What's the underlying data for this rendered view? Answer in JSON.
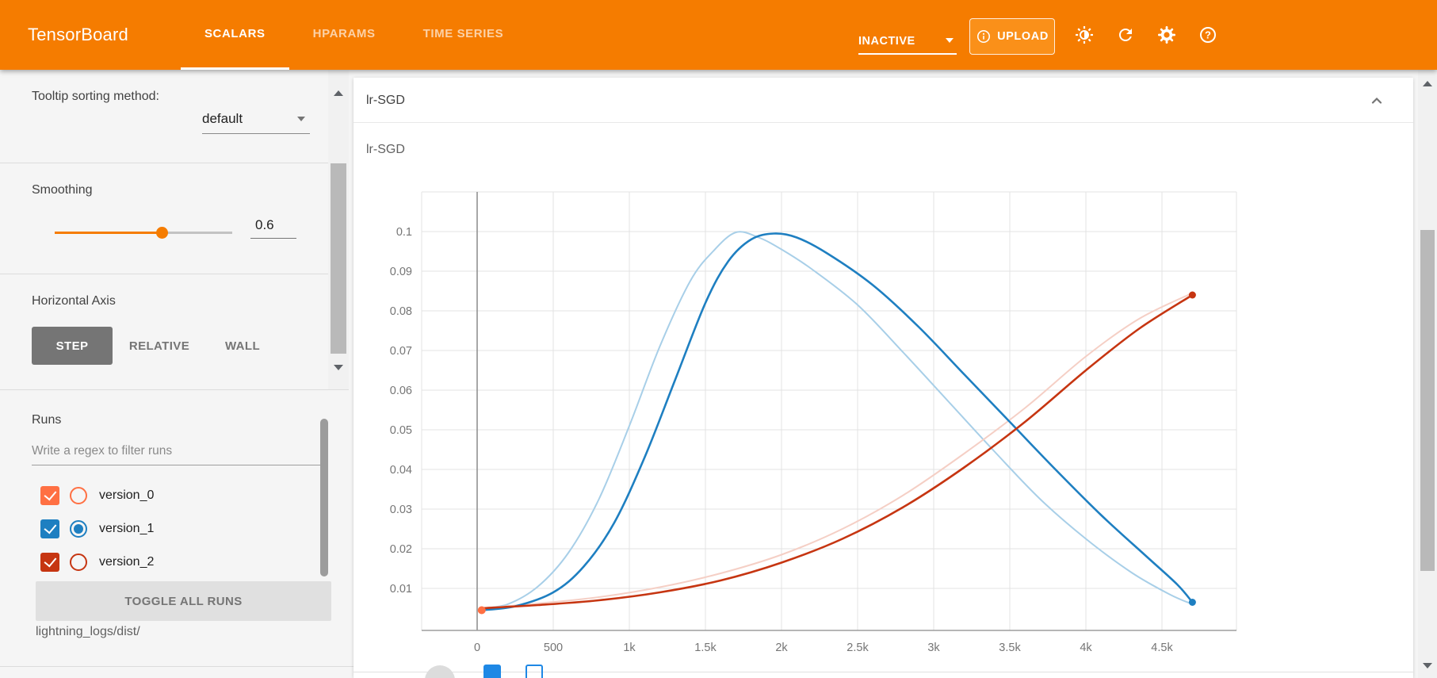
{
  "header": {
    "title": "TensorBoard",
    "tabs": [
      {
        "label": "SCALARS",
        "active": true
      },
      {
        "label": "HPARAMS",
        "active": false
      },
      {
        "label": "TIME SERIES",
        "active": false
      }
    ],
    "status": {
      "label": "INACTIVE"
    },
    "upload_label": "UPLOAD",
    "icons": [
      "info-icon",
      "brightness-icon",
      "refresh-icon",
      "settings-icon",
      "help-icon"
    ],
    "accent_color": "#f57c00"
  },
  "sidebar": {
    "tooltip_sorting": {
      "label": "Tooltip sorting method:",
      "value": "default"
    },
    "smoothing": {
      "label": "Smoothing",
      "value": "0.6"
    },
    "horizontal_axis": {
      "label": "Horizontal Axis",
      "options": [
        {
          "label": "STEP",
          "active": true
        },
        {
          "label": "RELATIVE",
          "active": false
        },
        {
          "label": "WALL",
          "active": false
        }
      ]
    },
    "runs": {
      "label": "Runs",
      "filter_placeholder": "Write a regex to filter runs",
      "items": [
        {
          "name": "version_0",
          "color": "#ff7043",
          "checked": true,
          "radio_selected": false
        },
        {
          "name": "version_1",
          "color": "#1e7fc1",
          "checked": true,
          "radio_selected": true
        },
        {
          "name": "version_2",
          "color": "#c63511",
          "checked": true,
          "radio_selected": false
        }
      ],
      "toggle_label": "TOGGLE ALL RUNS",
      "logdir": "lightning_logs/dist/"
    }
  },
  "main": {
    "card": {
      "title": "lr-SGD"
    }
  },
  "chart_data": {
    "type": "line",
    "title": "lr-SGD",
    "xlabel": "step",
    "ylabel": "",
    "grid": true,
    "smoothing": 0.6,
    "xlim": [
      -360,
      4990
    ],
    "ylim": [
      0,
      0.11
    ],
    "x_ticks": [
      {
        "value": 0,
        "label": "0"
      },
      {
        "value": 500,
        "label": "500"
      },
      {
        "value": 1000,
        "label": "1k"
      },
      {
        "value": 1500,
        "label": "1.5k"
      },
      {
        "value": 2000,
        "label": "2k"
      },
      {
        "value": 2500,
        "label": "2.5k"
      },
      {
        "value": 3000,
        "label": "3k"
      },
      {
        "value": 3500,
        "label": "3.5k"
      },
      {
        "value": 4000,
        "label": "4k"
      },
      {
        "value": 4500,
        "label": "4.5k"
      }
    ],
    "y_ticks": [
      0.01,
      0.02,
      0.03,
      0.04,
      0.05,
      0.06,
      0.07,
      0.08,
      0.09,
      0.1
    ],
    "series": [
      {
        "name": "version_1 (raw)",
        "role": "raw",
        "color": "#a8cfe8",
        "points": [
          [
            30,
            0.005
          ],
          [
            200,
            0.006
          ],
          [
            400,
            0.0105
          ],
          [
            600,
            0.019
          ],
          [
            800,
            0.0325
          ],
          [
            1000,
            0.051
          ],
          [
            1200,
            0.071
          ],
          [
            1400,
            0.0875
          ],
          [
            1550,
            0.095
          ],
          [
            1700,
            0.0998
          ],
          [
            1850,
            0.0985
          ],
          [
            2000,
            0.0955
          ],
          [
            2200,
            0.0905
          ],
          [
            2500,
            0.0815
          ],
          [
            2800,
            0.0695
          ],
          [
            3100,
            0.057
          ],
          [
            3400,
            0.0445
          ],
          [
            3700,
            0.0325
          ],
          [
            4000,
            0.0225
          ],
          [
            4300,
            0.014
          ],
          [
            4550,
            0.0085
          ],
          [
            4700,
            0.006
          ]
        ]
      },
      {
        "name": "version_2 (raw)",
        "role": "raw",
        "color": "#f5cfc5",
        "points": [
          [
            30,
            0.005
          ],
          [
            400,
            0.0062
          ],
          [
            800,
            0.0078
          ],
          [
            1200,
            0.0103
          ],
          [
            1600,
            0.0138
          ],
          [
            2000,
            0.0185
          ],
          [
            2400,
            0.025
          ],
          [
            2800,
            0.0335
          ],
          [
            3200,
            0.044
          ],
          [
            3600,
            0.0555
          ],
          [
            4000,
            0.0685
          ],
          [
            4350,
            0.078
          ],
          [
            4700,
            0.0845
          ]
        ]
      },
      {
        "name": "version_1 (smoothed)",
        "role": "smoothed",
        "color": "#1e7fc1",
        "end_marker": true,
        "points": [
          [
            30,
            0.0045
          ],
          [
            250,
            0.0055
          ],
          [
            500,
            0.009
          ],
          [
            700,
            0.0155
          ],
          [
            900,
            0.0265
          ],
          [
            1100,
            0.043
          ],
          [
            1300,
            0.0625
          ],
          [
            1500,
            0.082
          ],
          [
            1650,
            0.0925
          ],
          [
            1800,
            0.098
          ],
          [
            1950,
            0.0995
          ],
          [
            2100,
            0.0985
          ],
          [
            2300,
            0.0945
          ],
          [
            2600,
            0.0865
          ],
          [
            2900,
            0.076
          ],
          [
            3200,
            0.064
          ],
          [
            3500,
            0.052
          ],
          [
            3800,
            0.04
          ],
          [
            4100,
            0.0285
          ],
          [
            4400,
            0.018
          ],
          [
            4600,
            0.011
          ],
          [
            4700,
            0.0065
          ]
        ]
      },
      {
        "name": "version_2 (smoothed)",
        "role": "smoothed",
        "color": "#c63511",
        "end_marker": true,
        "points": [
          [
            30,
            0.005
          ],
          [
            400,
            0.0058
          ],
          [
            800,
            0.007
          ],
          [
            1200,
            0.009
          ],
          [
            1600,
            0.012
          ],
          [
            2000,
            0.0165
          ],
          [
            2400,
            0.0225
          ],
          [
            2800,
            0.0305
          ],
          [
            3200,
            0.0405
          ],
          [
            3600,
            0.052
          ],
          [
            4000,
            0.065
          ],
          [
            4350,
            0.0755
          ],
          [
            4700,
            0.084
          ]
        ]
      },
      {
        "name": "version_0",
        "type": "point",
        "color": "#ff7043",
        "points": [
          [
            30,
            0.0045
          ]
        ]
      }
    ]
  }
}
